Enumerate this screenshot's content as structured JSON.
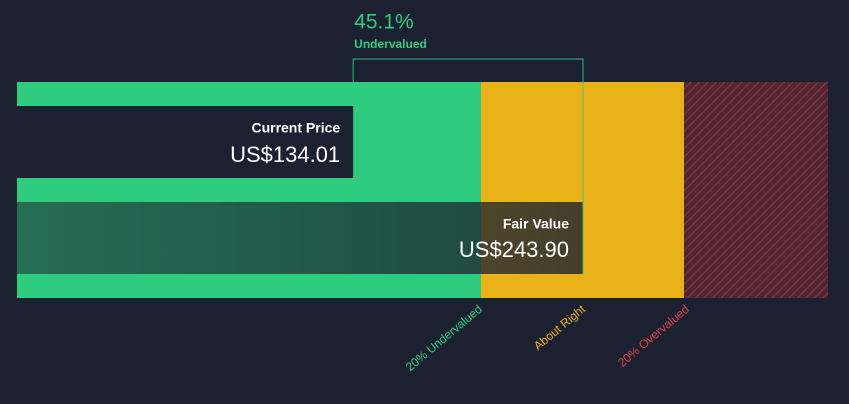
{
  "chart_data": {
    "type": "valuation",
    "current_price": {
      "label": "Current Price",
      "value": 134.01,
      "value_label": "US$134.01"
    },
    "fair_value": {
      "label": "Fair Value",
      "value": 243.9,
      "value_label": "US$243.90"
    },
    "discount": {
      "value": 45.1,
      "value_label": "45.1%",
      "label": "Undervalued"
    },
    "zones": [
      "20% Undervalued",
      "About Right",
      "20% Overvalued"
    ]
  }
}
